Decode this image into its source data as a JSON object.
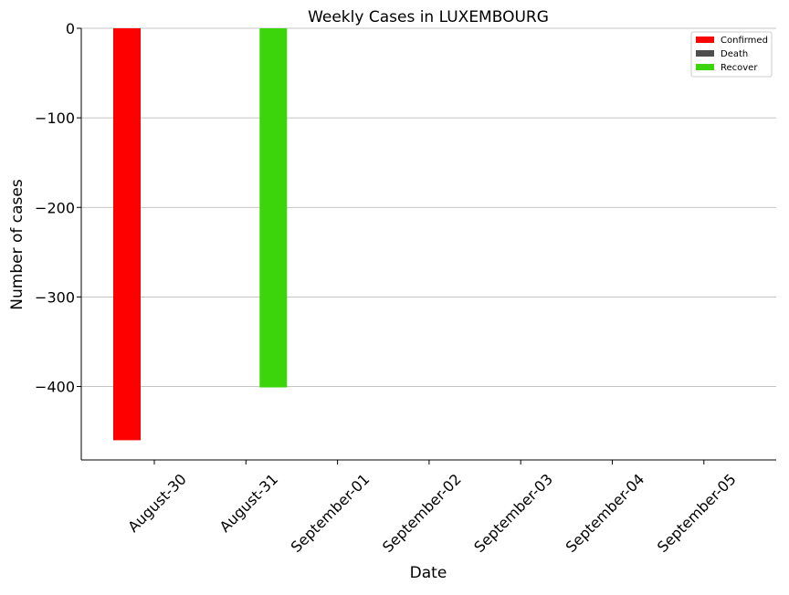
{
  "chart_data": {
    "type": "bar",
    "title": "Weekly Cases in LUXEMBOURG",
    "xlabel": "Date",
    "ylabel": "Number of cases",
    "categories": [
      "August-30",
      "August-31",
      "September-01",
      "September-02",
      "September-03",
      "September-04",
      "September-05"
    ],
    "series": [
      {
        "name": "Confirmed",
        "color": "#ff0000",
        "values": [
          -460,
          0,
          0,
          0,
          0,
          0,
          0
        ]
      },
      {
        "name": "Death",
        "color": "#4d4d4d",
        "values": [
          0,
          0,
          0,
          0,
          0,
          0,
          0
        ]
      },
      {
        "name": "Recover",
        "color": "#3cd40a",
        "values": [
          0,
          -401,
          0,
          0,
          0,
          0,
          0
        ]
      }
    ],
    "ylim": [
      -482,
      0
    ],
    "yticks": [
      0,
      -100,
      -200,
      -300,
      -400
    ],
    "ytick_labels": [
      "0",
      "−100",
      "−200",
      "−300",
      "−400"
    ],
    "grid": "y",
    "legend": "top-right"
  }
}
